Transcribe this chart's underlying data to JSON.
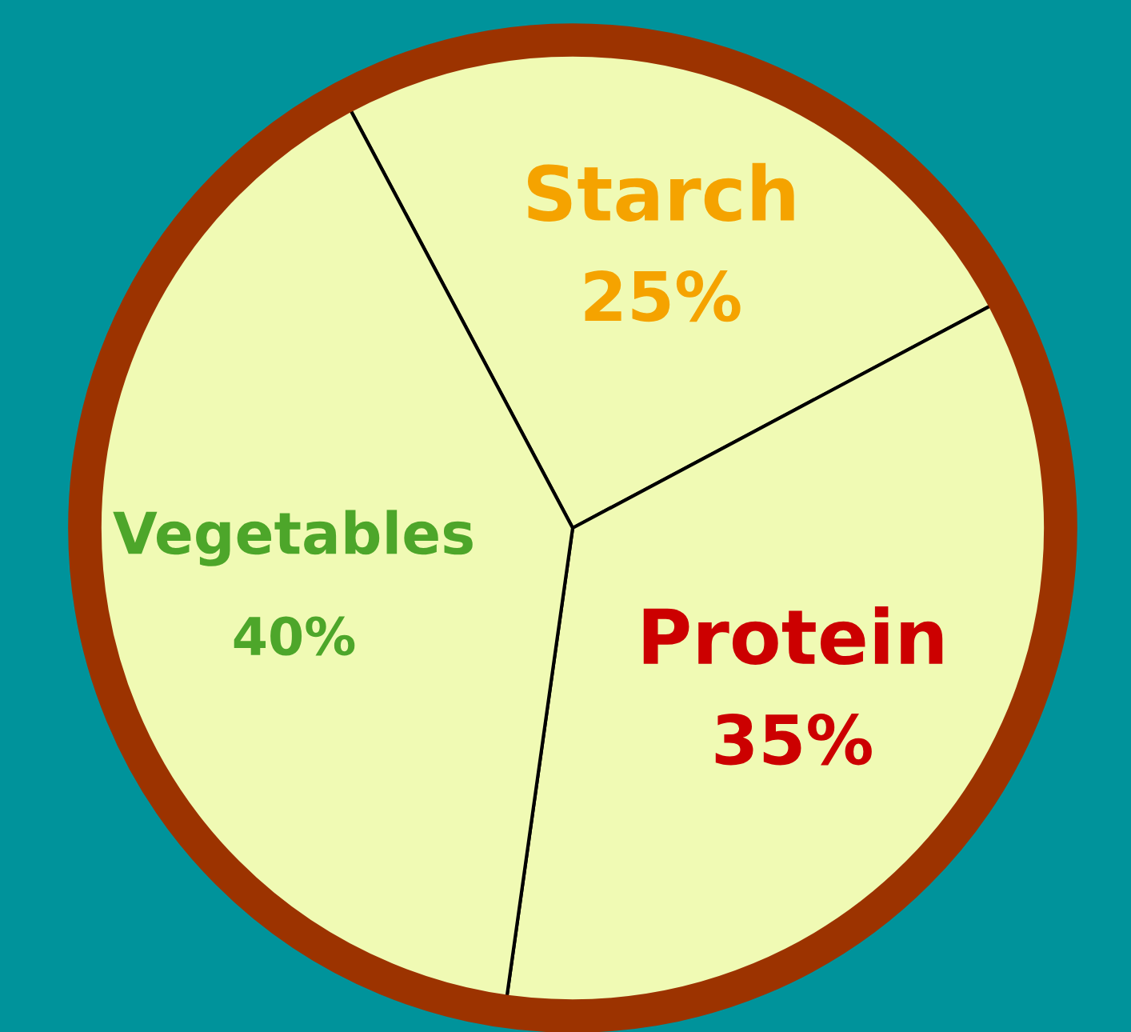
{
  "chart_data": {
    "type": "pie",
    "categories": [
      "Starch",
      "Protein",
      "Vegetables"
    ],
    "values": [
      25,
      35,
      40
    ],
    "colors": [
      "#f0fab4",
      "#f0fab4",
      "#f0fab4"
    ],
    "value_labels": [
      "25%",
      "35%",
      "40%"
    ],
    "legend": false
  }
}
